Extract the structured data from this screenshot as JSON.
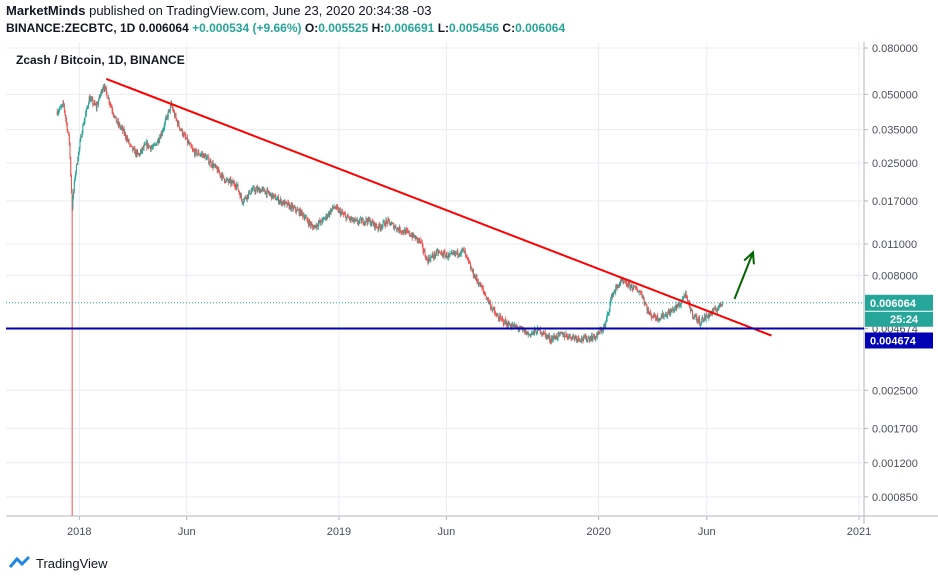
{
  "header": {
    "author": "MarketMinds",
    "published_text": "published on TradingView.com, June 23, 2020 20:34:38 -03",
    "symbol_line": "BINANCE:ZECBTC, 1D",
    "last_value": "0.006064",
    "change": "+0.000534 (+9.66%)",
    "o_label": "O:",
    "o_value": "0.005525",
    "h_label": "H:",
    "h_value": "0.006691",
    "l_label": "L:",
    "l_value": "0.005456",
    "c_label": "C:",
    "c_value": "0.006064"
  },
  "chart_title": "Zcash / Bitcoin, 1D, BINANCE",
  "footer": {
    "brand": "TradingView"
  },
  "colors": {
    "up": "#26a69a",
    "down": "#ef5350",
    "trendline": "#ff0000",
    "support": "#0000b4",
    "arrow": "#006400",
    "current_tag": "#26a69a",
    "countdown_tag": "#26a69a",
    "support_tag": "#0000b4",
    "grid": "#e9ecf1"
  },
  "chart_data": {
    "type": "candlestick",
    "scale": "log",
    "y_axis_ticks": [
      "0.080000",
      "0.050000",
      "0.035000",
      "0.025000",
      "0.017000",
      "0.011000",
      "0.008000",
      "0.004674",
      "0.002500",
      "0.001700",
      "0.001200",
      "0.000850"
    ],
    "y_axis_tick_values": [
      0.08,
      0.05,
      0.035,
      0.025,
      0.017,
      0.011,
      0.008,
      0.004674,
      0.0025,
      0.0017,
      0.0012,
      0.00085
    ],
    "ylim": [
      0.0007,
      0.085
    ],
    "x_axis_ticks": [
      "2018",
      "Jun",
      "2019",
      "Jun",
      "2020",
      "Jun",
      "2021"
    ],
    "x_axis_tick_dates": [
      "2018-01-01",
      "2018-06-01",
      "2019-01-01",
      "2019-06-01",
      "2020-01-01",
      "2020-06-01",
      "2021-01-01"
    ],
    "xlim": [
      "2017-09-20",
      "2021-01-08"
    ],
    "current_price": 0.006064,
    "current_price_label": "0.006064",
    "countdown_label": "25:24",
    "support_level": 0.004674,
    "support_label": "0.004674",
    "price_path": [
      [
        "2017-12-01",
        0.042
      ],
      [
        "2017-12-10",
        0.045
      ],
      [
        "2017-12-18",
        0.031
      ],
      [
        "2017-12-22",
        0.016
      ],
      [
        "2017-12-26",
        0.022
      ],
      [
        "2018-01-05",
        0.035
      ],
      [
        "2018-01-15",
        0.048
      ],
      [
        "2018-01-25",
        0.044
      ],
      [
        "2018-02-04",
        0.055
      ],
      [
        "2018-02-12",
        0.047
      ],
      [
        "2018-02-22",
        0.038
      ],
      [
        "2018-03-05",
        0.034
      ],
      [
        "2018-03-15",
        0.029
      ],
      [
        "2018-03-25",
        0.027
      ],
      [
        "2018-04-05",
        0.03
      ],
      [
        "2018-04-15",
        0.029
      ],
      [
        "2018-04-25",
        0.033
      ],
      [
        "2018-05-01",
        0.037
      ],
      [
        "2018-05-10",
        0.045
      ],
      [
        "2018-05-18",
        0.038
      ],
      [
        "2018-05-28",
        0.033
      ],
      [
        "2018-06-10",
        0.028
      ],
      [
        "2018-06-25",
        0.027
      ],
      [
        "2018-07-10",
        0.024
      ],
      [
        "2018-07-25",
        0.021
      ],
      [
        "2018-08-10",
        0.02
      ],
      [
        "2018-08-18",
        0.017
      ],
      [
        "2018-09-01",
        0.019
      ],
      [
        "2018-09-15",
        0.019
      ],
      [
        "2018-09-28",
        0.018
      ],
      [
        "2018-10-10",
        0.017
      ],
      [
        "2018-10-25",
        0.016
      ],
      [
        "2018-11-10",
        0.015
      ],
      [
        "2018-11-25",
        0.013
      ],
      [
        "2018-12-10",
        0.014
      ],
      [
        "2018-12-25",
        0.016
      ],
      [
        "2019-01-10",
        0.0145
      ],
      [
        "2019-01-25",
        0.0137
      ],
      [
        "2019-02-10",
        0.014
      ],
      [
        "2019-02-25",
        0.013
      ],
      [
        "2019-03-10",
        0.0138
      ],
      [
        "2019-03-25",
        0.0128
      ],
      [
        "2019-04-10",
        0.0122
      ],
      [
        "2019-04-25",
        0.0113
      ],
      [
        "2019-05-05",
        0.0093
      ],
      [
        "2019-05-20",
        0.0101
      ],
      [
        "2019-06-05",
        0.0097
      ],
      [
        "2019-06-25",
        0.0103
      ],
      [
        "2019-07-08",
        0.0082
      ],
      [
        "2019-07-20",
        0.0071
      ],
      [
        "2019-08-01",
        0.006
      ],
      [
        "2019-08-10",
        0.0053
      ],
      [
        "2019-08-25",
        0.0049
      ],
      [
        "2019-09-10",
        0.0047
      ],
      [
        "2019-09-25",
        0.0044
      ],
      [
        "2019-10-10",
        0.0046
      ],
      [
        "2019-10-25",
        0.0042
      ],
      [
        "2019-11-10",
        0.0044
      ],
      [
        "2019-11-25",
        0.0043
      ],
      [
        "2019-12-10",
        0.0042
      ],
      [
        "2019-12-28",
        0.0043
      ],
      [
        "2020-01-10",
        0.0048
      ],
      [
        "2020-01-20",
        0.0066
      ],
      [
        "2020-02-01",
        0.0075
      ],
      [
        "2020-02-15",
        0.0072
      ],
      [
        "2020-03-01",
        0.0067
      ],
      [
        "2020-03-12",
        0.0054
      ],
      [
        "2020-03-25",
        0.0052
      ],
      [
        "2020-04-10",
        0.0055
      ],
      [
        "2020-04-25",
        0.006
      ],
      [
        "2020-05-01",
        0.0066
      ],
      [
        "2020-05-12",
        0.0054
      ],
      [
        "2020-05-22",
        0.005
      ],
      [
        "2020-06-05",
        0.0054
      ],
      [
        "2020-06-15",
        0.0057
      ],
      [
        "2020-06-23",
        0.006064
      ]
    ],
    "annotations": [
      {
        "type": "trendline",
        "from": [
          "2018-02-08",
          0.0585
        ],
        "to": [
          "2020-08-31",
          0.00435
        ]
      },
      {
        "type": "horizontal_line",
        "level": 0.004674
      },
      {
        "type": "arrow",
        "from": [
          "2020-07-10",
          0.0063
        ],
        "to": [
          "2020-08-05",
          0.0101
        ]
      }
    ]
  }
}
